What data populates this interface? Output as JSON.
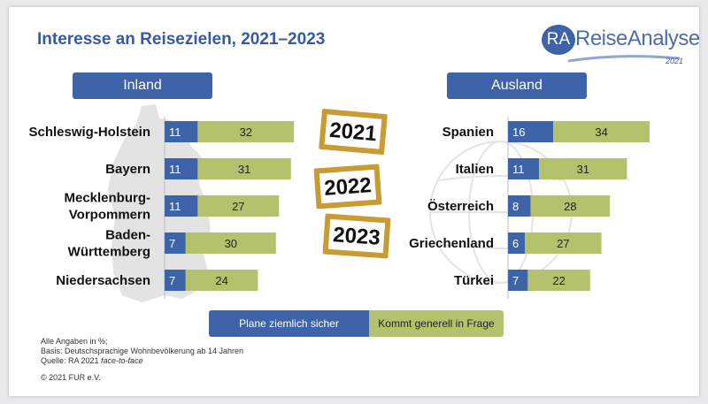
{
  "title": "Interesse an Reisezielen, 2021–2023",
  "logo": {
    "ra": "RA",
    "name": "ReiseAnalyse",
    "year": "2021"
  },
  "colors": {
    "sure": "#3f63a9",
    "general": "#b5c26d",
    "accent": "#3559a8",
    "card": "#c89b33"
  },
  "year_cards": [
    "2021",
    "2022",
    "2023"
  ],
  "legend": {
    "sure_label": "Plane ziemlich sicher",
    "general_label": "Kommt generell in Frage"
  },
  "footnotes": {
    "line1": "Alle Angaben in %;",
    "line2": "Basis: Deutschsprachige Wohnbevölkerung ab 14 Jahren",
    "line3_prefix": "Quelle: RA 2021 ",
    "line3_italic": "face-to-face",
    "copyright": "© 2021 FUR e.V."
  },
  "chart_data": [
    {
      "type": "bar",
      "orientation": "horizontal",
      "stacked": true,
      "title": "Inland",
      "categories": [
        "Schleswig-Holstein",
        "Bayern",
        "Mecklenburg-Vorpommern",
        "Baden-Württemberg",
        "Niedersachsen"
      ],
      "category_lines": [
        [
          "Schleswig-Holstein"
        ],
        [
          "Bayern"
        ],
        [
          "Mecklenburg-",
          "Vorpommern"
        ],
        [
          "Baden-",
          "Württemberg"
        ],
        [
          "Niedersachsen"
        ]
      ],
      "series": [
        {
          "name": "Plane ziemlich sicher",
          "values": [
            11,
            11,
            11,
            7,
            7
          ]
        },
        {
          "name": "Kommt generell in Frage",
          "values": [
            32,
            31,
            27,
            30,
            24
          ]
        }
      ],
      "xlim": [
        0,
        45
      ],
      "grid": false,
      "legend": "bottom"
    },
    {
      "type": "bar",
      "orientation": "horizontal",
      "stacked": true,
      "title": "Ausland",
      "categories": [
        "Spanien",
        "Italien",
        "Österreich",
        "Griechenland",
        "Türkei"
      ],
      "category_lines": [
        [
          "Spanien"
        ],
        [
          "Italien"
        ],
        [
          "Österreich"
        ],
        [
          "Griechenland"
        ],
        [
          "Türkei"
        ]
      ],
      "series": [
        {
          "name": "Plane ziemlich sicher",
          "values": [
            16,
            11,
            8,
            6,
            7
          ]
        },
        {
          "name": "Kommt generell in Frage",
          "values": [
            34,
            31,
            28,
            27,
            22
          ]
        }
      ],
      "xlim": [
        0,
        50
      ],
      "grid": false,
      "legend": "bottom"
    }
  ]
}
